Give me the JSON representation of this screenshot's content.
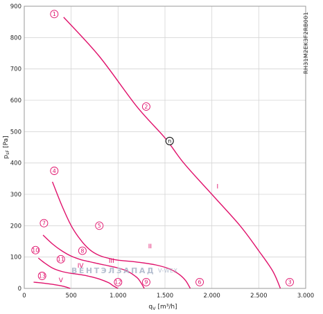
{
  "chart_data": {
    "type": "line",
    "xlabel": "q_V [m³/h]",
    "ylabel": "p_sF [Pa]",
    "xlim": [
      0,
      3000
    ],
    "ylim": [
      0,
      900
    ],
    "x_ticks": [
      "0",
      "500",
      "1.000",
      "1.500",
      "2.000",
      "2.500",
      "3.000"
    ],
    "y_ticks": [
      "0",
      "100",
      "200",
      "300",
      "400",
      "500",
      "600",
      "700",
      "800",
      "900"
    ],
    "grid": true,
    "model_code": "RH31M2EK3F2RB001",
    "line_color": "#e0116b",
    "series": [
      {
        "name": "I",
        "x": [
          420,
          800,
          1200,
          1500,
          1700,
          2000,
          2300,
          2500,
          2650,
          2730
        ],
        "y": [
          865,
          740,
          580,
          480,
          400,
          300,
          200,
          120,
          55,
          0
        ]
      },
      {
        "name": "II",
        "x": [
          300,
          400,
          500,
          600,
          700,
          800,
          900,
          1000,
          1200,
          1400,
          1550,
          1650,
          1720,
          1770
        ],
        "y": [
          340,
          265,
          200,
          155,
          123,
          105,
          96,
          90,
          84,
          75,
          62,
          45,
          25,
          0
        ]
      },
      {
        "name": "III",
        "x": [
          200,
          300,
          400,
          500,
          600,
          700,
          800,
          900,
          1000,
          1100,
          1200,
          1240,
          1280
        ],
        "y": [
          170,
          142,
          120,
          103,
          92,
          85,
          78,
          72,
          65,
          55,
          35,
          20,
          0
        ]
      },
      {
        "name": "IV",
        "x": [
          150,
          200,
          300,
          400,
          500,
          600,
          700,
          800,
          900,
          950,
          1000
        ],
        "y": [
          97,
          85,
          65,
          54,
          48,
          44,
          38,
          30,
          18,
          8,
          0
        ]
      },
      {
        "name": "V",
        "x": [
          100,
          200,
          300,
          400,
          450,
          490
        ],
        "y": [
          20,
          17,
          13,
          8,
          4,
          0
        ]
      }
    ],
    "operating_points": [
      {
        "label": "1",
        "x": 320,
        "y": 875
      },
      {
        "label": "2",
        "x": 1300,
        "y": 580
      },
      {
        "label": "3",
        "x": 2830,
        "y": 20
      },
      {
        "label": "4",
        "x": 320,
        "y": 375
      },
      {
        "label": "5",
        "x": 800,
        "y": 200
      },
      {
        "label": "6",
        "x": 1870,
        "y": 20
      },
      {
        "label": "7",
        "x": 210,
        "y": 208
      },
      {
        "label": "8",
        "x": 620,
        "y": 120
      },
      {
        "label": "9",
        "x": 1300,
        "y": 20
      },
      {
        "label": "10",
        "x": 120,
        "y": 122
      },
      {
        "label": "11",
        "x": 390,
        "y": 93
      },
      {
        "label": "12",
        "x": 1000,
        "y": 20
      },
      {
        "label": "13",
        "x": 190,
        "y": 40
      }
    ],
    "series_labels": [
      {
        "text": "I",
        "x": 2060,
        "y": 325
      },
      {
        "text": "II",
        "x": 1340,
        "y": 135
      },
      {
        "text": "III",
        "x": 930,
        "y": 88
      },
      {
        "text": "IV",
        "x": 600,
        "y": 73
      },
      {
        "text": "V",
        "x": 390,
        "y": 27
      }
    ],
    "nominal_point": {
      "label": "n",
      "x": 1550,
      "y": 470
    }
  },
  "watermark": {
    "text1": "ВЕНТЭЛЗАПАД",
    "text2": "V-WEX"
  }
}
